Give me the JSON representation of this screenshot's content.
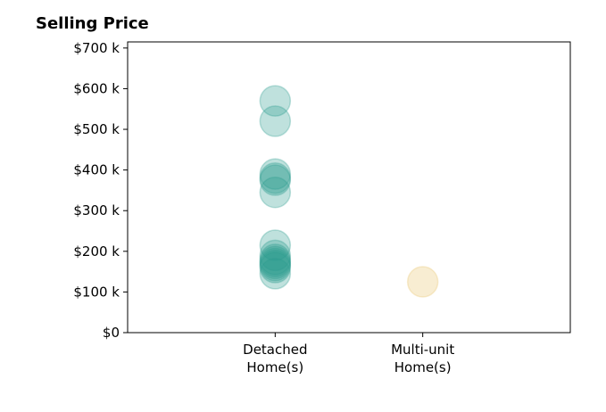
{
  "chart_data": {
    "type": "scatter",
    "title": "Selling Price",
    "xlabel": "",
    "ylabel": "",
    "categories": [
      [
        "Detached",
        "Home(s)"
      ],
      [
        "Multi-unit",
        "Home(s)"
      ]
    ],
    "xlim": [
      0,
      3
    ],
    "ylim": [
      0,
      715000
    ],
    "yticks": [
      0,
      100000,
      200000,
      300000,
      400000,
      500000,
      600000,
      700000
    ],
    "ytick_labels": [
      "$0",
      "$100 k",
      "$200 k",
      "$300 k",
      "$400 k",
      "$500 k",
      "$600 k",
      "$700 k"
    ],
    "grid": false,
    "series": [
      {
        "category_index": 0,
        "color": "#2a9d8f",
        "alpha": 0.3,
        "values": [
          570000,
          520000,
          390000,
          380000,
          375000,
          345000,
          215000,
          190000,
          180000,
          175000,
          170000,
          165000,
          160000,
          145000
        ]
      },
      {
        "category_index": 1,
        "color": "#e9c46a",
        "alpha": 0.3,
        "values": [
          125000
        ]
      }
    ]
  }
}
